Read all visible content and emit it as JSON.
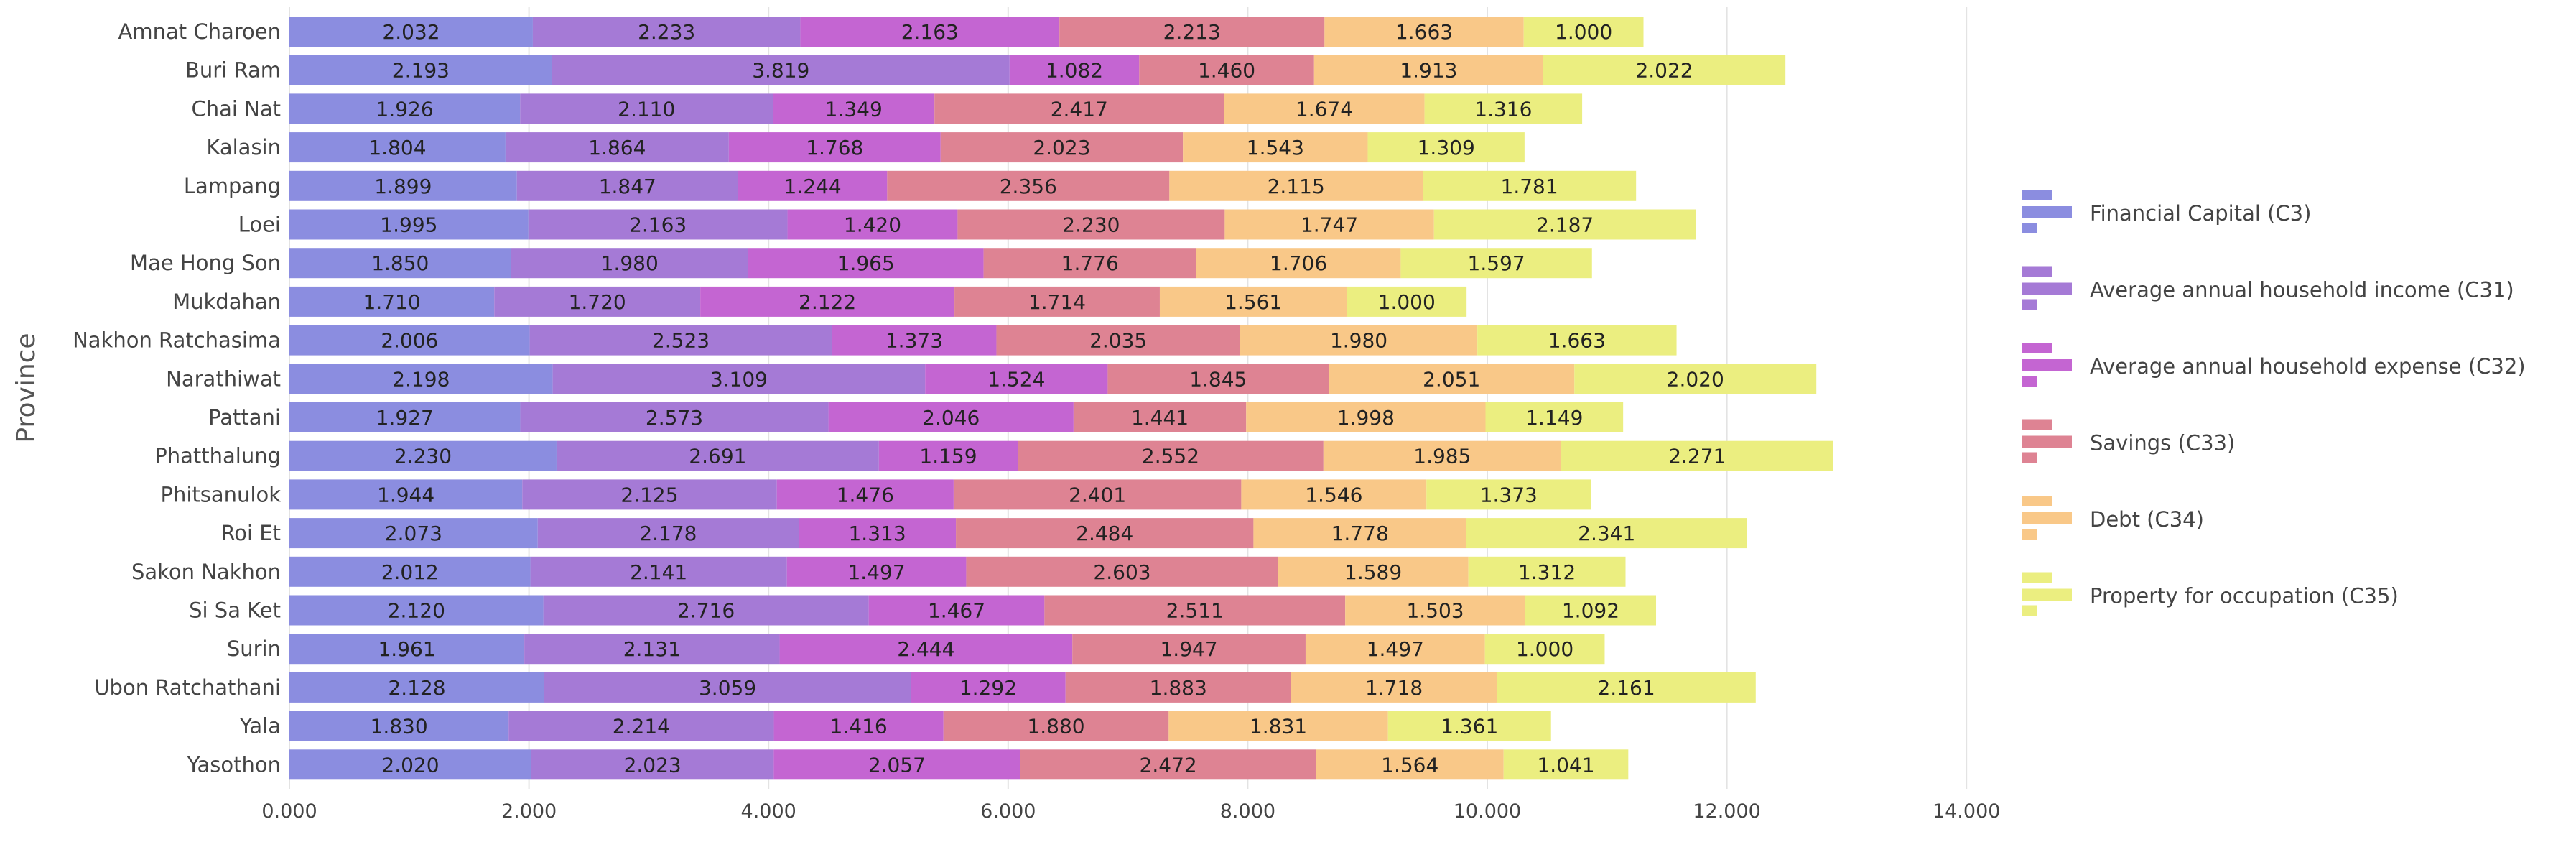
{
  "chart_data": {
    "type": "bar",
    "orientation": "horizontal",
    "stacked": true,
    "title": "",
    "xlabel": "",
    "ylabel": "Province",
    "xlim": [
      0,
      14
    ],
    "x_ticks": [
      0,
      2,
      4,
      6,
      8,
      10,
      12,
      14
    ],
    "x_tick_labels": [
      "0.000",
      "2.000",
      "4.000",
      "6.000",
      "8.000",
      "10.000",
      "12.000",
      "14.000"
    ],
    "grid": true,
    "legend_position": "right",
    "categories": [
      "Amnat Charoen",
      "Buri Ram",
      "Chai Nat",
      "Kalasin",
      "Lampang",
      "Loei",
      "Mae Hong Son",
      "Mukdahan",
      "Nakhon Ratchasima",
      "Narathiwat",
      "Pattani",
      "Phatthalung",
      "Phitsanulok",
      "Roi Et",
      "Sakon Nakhon",
      "Si Sa Ket",
      "Surin",
      "Ubon Ratchathani",
      "Yala",
      "Yasothon"
    ],
    "series": [
      {
        "name": "Financial Capital (C3)",
        "color": "#8b8de0",
        "values": [
          2.032,
          2.193,
          1.926,
          1.804,
          1.899,
          1.995,
          1.85,
          1.71,
          2.006,
          2.198,
          1.927,
          2.23,
          1.944,
          2.073,
          2.012,
          2.12,
          1.961,
          2.128,
          1.83,
          2.02
        ]
      },
      {
        "name": "Average annual household income (C31)",
        "color": "#a57ad6",
        "values": [
          2.233,
          3.819,
          2.11,
          1.864,
          1.847,
          2.163,
          1.98,
          1.72,
          2.523,
          3.109,
          2.573,
          2.691,
          2.125,
          2.178,
          2.141,
          2.716,
          2.131,
          3.059,
          2.214,
          2.023
        ]
      },
      {
        "name": "Average annual household expense (C32)",
        "color": "#c465d2",
        "values": [
          2.163,
          1.082,
          1.349,
          1.768,
          1.244,
          1.42,
          1.965,
          2.122,
          1.373,
          1.524,
          2.046,
          1.159,
          1.476,
          1.313,
          1.497,
          1.467,
          2.444,
          1.292,
          1.416,
          2.057
        ]
      },
      {
        "name": "Savings (C33)",
        "color": "#de8393",
        "values": [
          2.213,
          1.46,
          2.417,
          2.023,
          2.356,
          2.23,
          1.776,
          1.714,
          2.035,
          1.845,
          1.441,
          2.552,
          2.401,
          2.484,
          2.603,
          2.511,
          1.947,
          1.883,
          1.88,
          2.472
        ]
      },
      {
        "name": "Debt (C34)",
        "color": "#f9c888",
        "values": [
          1.663,
          1.913,
          1.674,
          1.543,
          2.115,
          1.747,
          1.706,
          1.561,
          1.98,
          2.051,
          1.998,
          1.985,
          1.546,
          1.778,
          1.589,
          1.503,
          1.497,
          1.718,
          1.831,
          1.564
        ]
      },
      {
        "name": "Property for occupation (C35)",
        "color": "#ebee80",
        "values": [
          1.0,
          2.022,
          1.316,
          1.309,
          1.781,
          2.187,
          1.597,
          1.0,
          1.663,
          2.02,
          1.149,
          2.271,
          1.373,
          2.341,
          1.312,
          1.092,
          1.0,
          2.161,
          1.361,
          1.041
        ]
      }
    ]
  }
}
